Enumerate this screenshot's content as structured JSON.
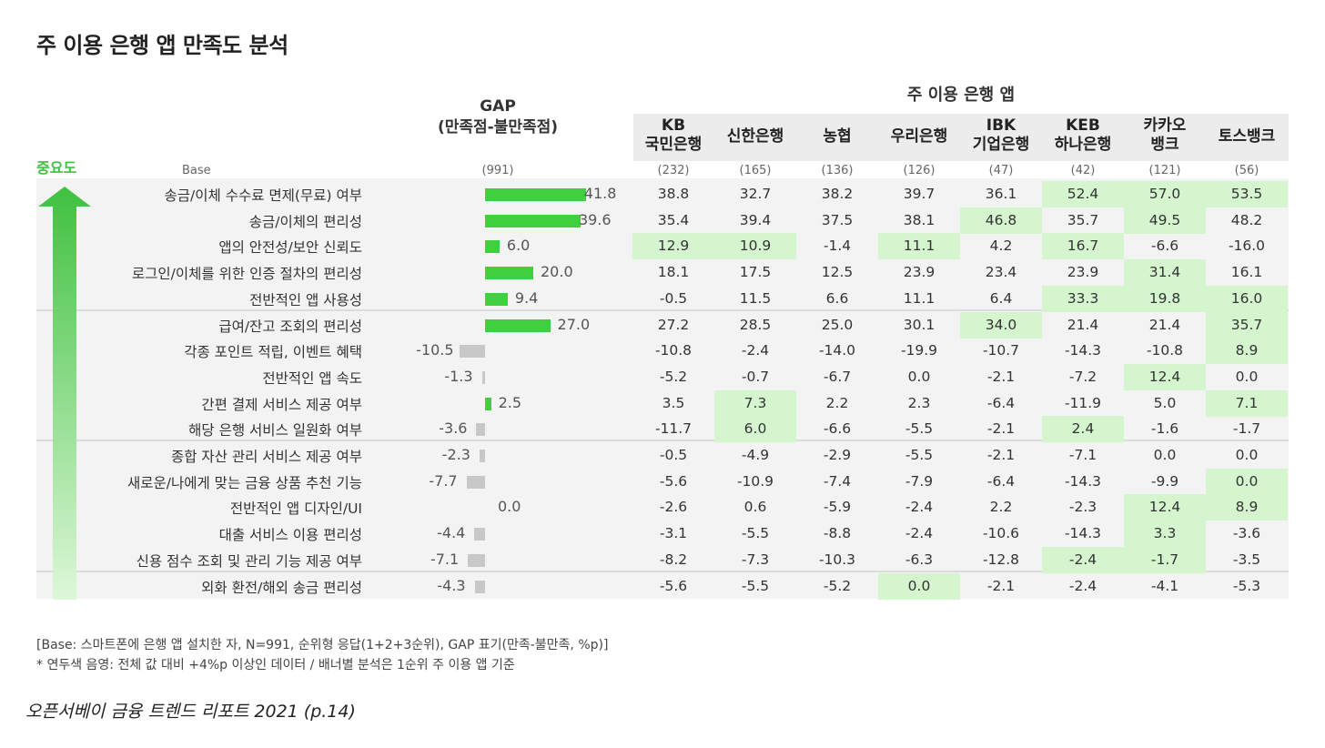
{
  "title": "주 이용 은행 앱 만족도 분석",
  "chart_data": {
    "type": "table",
    "importance_label": "중요도",
    "base_label": "Base",
    "gap_header": "GAP\n(만족점-불만족점)",
    "gap_base": "(991)",
    "banks_header": "주 이용 은행 앱",
    "banks": [
      {
        "name": "KB\n국민은행",
        "base": "(232)"
      },
      {
        "name": "신한은행",
        "base": "(165)"
      },
      {
        "name": "농협",
        "base": "(136)"
      },
      {
        "name": "우리은행",
        "base": "(126)"
      },
      {
        "name": "IBK\n기업은행",
        "base": "(47)"
      },
      {
        "name": "KEB\n하나은행",
        "base": "(42)"
      },
      {
        "name": "카카오\n뱅크",
        "base": "(121)"
      },
      {
        "name": "토스뱅크",
        "base": "(56)"
      }
    ],
    "gap_range": [
      -10.5,
      41.8
    ],
    "rows": [
      {
        "label": "송금/이체 수수료 면제(무료) 여부",
        "gap": 41.8,
        "values": [
          "38.8",
          "32.7",
          "38.2",
          "39.7",
          "36.1",
          "52.4",
          "57.0",
          "53.5"
        ],
        "highlight": [
          false,
          false,
          false,
          false,
          false,
          true,
          true,
          true
        ]
      },
      {
        "label": "송금/이체의 편리성",
        "gap": 39.6,
        "values": [
          "35.4",
          "39.4",
          "37.5",
          "38.1",
          "46.8",
          "35.7",
          "49.5",
          "48.2"
        ],
        "highlight": [
          false,
          false,
          false,
          false,
          true,
          false,
          true,
          false
        ]
      },
      {
        "label": "앱의 안전성/보안 신뢰도",
        "gap": 6.0,
        "values": [
          "12.9",
          "10.9",
          "-1.4",
          "11.1",
          "4.2",
          "16.7",
          "-6.6",
          "-16.0"
        ],
        "highlight": [
          true,
          true,
          false,
          true,
          false,
          true,
          false,
          false
        ]
      },
      {
        "label": "로그인/이체를 위한 인증 절차의 편리성",
        "gap": 20.0,
        "values": [
          "18.1",
          "17.5",
          "12.5",
          "23.9",
          "23.4",
          "23.9",
          "31.4",
          "16.1"
        ],
        "highlight": [
          false,
          false,
          false,
          false,
          false,
          false,
          true,
          false
        ]
      },
      {
        "label": "전반적인 앱 사용성",
        "gap": 9.4,
        "values": [
          "-0.5",
          "11.5",
          "6.6",
          "11.1",
          "6.4",
          "33.3",
          "19.8",
          "16.0"
        ],
        "highlight": [
          false,
          false,
          false,
          false,
          false,
          true,
          true,
          true
        ]
      },
      {
        "label": "급여/잔고 조회의 편리성",
        "gap": 27.0,
        "values": [
          "27.2",
          "28.5",
          "25.0",
          "30.1",
          "34.0",
          "21.4",
          "21.4",
          "35.7"
        ],
        "highlight": [
          false,
          false,
          false,
          false,
          true,
          false,
          false,
          true
        ]
      },
      {
        "label": "각종 포인트 적립, 이벤트 혜택",
        "gap": -10.5,
        "values": [
          "-10.8",
          "-2.4",
          "-14.0",
          "-19.9",
          "-10.7",
          "-14.3",
          "-10.8",
          "8.9"
        ],
        "highlight": [
          false,
          false,
          false,
          false,
          false,
          false,
          false,
          true
        ]
      },
      {
        "label": "전반적인 앱 속도",
        "gap": -1.3,
        "values": [
          "-5.2",
          "-0.7",
          "-6.7",
          "0.0",
          "-2.1",
          "-7.2",
          "12.4",
          "0.0"
        ],
        "highlight": [
          false,
          false,
          false,
          false,
          false,
          false,
          true,
          false
        ]
      },
      {
        "label": "간편 결제 서비스 제공 여부",
        "gap": 2.5,
        "values": [
          "3.5",
          "7.3",
          "2.2",
          "2.3",
          "-6.4",
          "-11.9",
          "5.0",
          "7.1"
        ],
        "highlight": [
          false,
          true,
          false,
          false,
          false,
          false,
          false,
          true
        ]
      },
      {
        "label": "해당 은행 서비스 일원화 여부",
        "gap": -3.6,
        "values": [
          "-11.7",
          "6.0",
          "-6.6",
          "-5.5",
          "-2.1",
          "2.4",
          "-1.6",
          "-1.7"
        ],
        "highlight": [
          false,
          true,
          false,
          false,
          false,
          true,
          false,
          false
        ]
      },
      {
        "label": "종합 자산 관리 서비스 제공 여부",
        "gap": -2.3,
        "values": [
          "-0.5",
          "-4.9",
          "-2.9",
          "-5.5",
          "-2.1",
          "-7.1",
          "0.0",
          "0.0"
        ],
        "highlight": [
          false,
          false,
          false,
          false,
          false,
          false,
          false,
          false
        ]
      },
      {
        "label": "새로운/나에게 맞는 금융 상품 추천 기능",
        "gap": -7.7,
        "values": [
          "-5.6",
          "-10.9",
          "-7.4",
          "-7.9",
          "-6.4",
          "-14.3",
          "-9.9",
          "0.0"
        ],
        "highlight": [
          false,
          false,
          false,
          false,
          false,
          false,
          false,
          true
        ]
      },
      {
        "label": "전반적인 앱 디자인/UI",
        "gap": 0.0,
        "values": [
          "-2.6",
          "0.6",
          "-5.9",
          "-2.4",
          "2.2",
          "-2.3",
          "12.4",
          "8.9"
        ],
        "highlight": [
          false,
          false,
          false,
          false,
          false,
          false,
          true,
          true
        ]
      },
      {
        "label": "대출 서비스 이용 편리성",
        "gap": -4.4,
        "values": [
          "-3.1",
          "-5.5",
          "-8.8",
          "-2.4",
          "-10.6",
          "-14.3",
          "3.3",
          "-3.6"
        ],
        "highlight": [
          false,
          false,
          false,
          false,
          false,
          false,
          true,
          false
        ]
      },
      {
        "label": "신용 점수 조회 및 관리 기능 제공 여부",
        "gap": -7.1,
        "values": [
          "-8.2",
          "-7.3",
          "-10.3",
          "-6.3",
          "-12.8",
          "-2.4",
          "-1.7",
          "-3.5"
        ],
        "highlight": [
          false,
          false,
          false,
          false,
          false,
          true,
          true,
          false
        ]
      },
      {
        "label": "외화 환전/해외 송금 편리성",
        "gap": -4.3,
        "values": [
          "-5.6",
          "-5.5",
          "-5.2",
          "0.0",
          "-2.1",
          "-2.4",
          "-4.1",
          "-5.3"
        ],
        "highlight": [
          false,
          false,
          false,
          true,
          false,
          false,
          false,
          false
        ]
      }
    ],
    "colors": {
      "positive_bar": "#3fcf3f",
      "negative_bar": "#c8c8c8",
      "highlight": "#d5f5cf",
      "arrow": "#3fc13f"
    }
  },
  "notes": {
    "base_note": "[Base: 스마트폰에 은행 앱 설치한 자, N=991, 순위형 응답(1+2+3순위), GAP 표기(만족-불만족, %p)]",
    "color_note": "* 연두색 음영: 전체 값 대비 +4%p 이상인 데이터 / 배너별 분석은 1순위 주 이용 앱 기준"
  },
  "source": "오픈서베이 금융 트렌드 리포트 2021 (p.14)"
}
